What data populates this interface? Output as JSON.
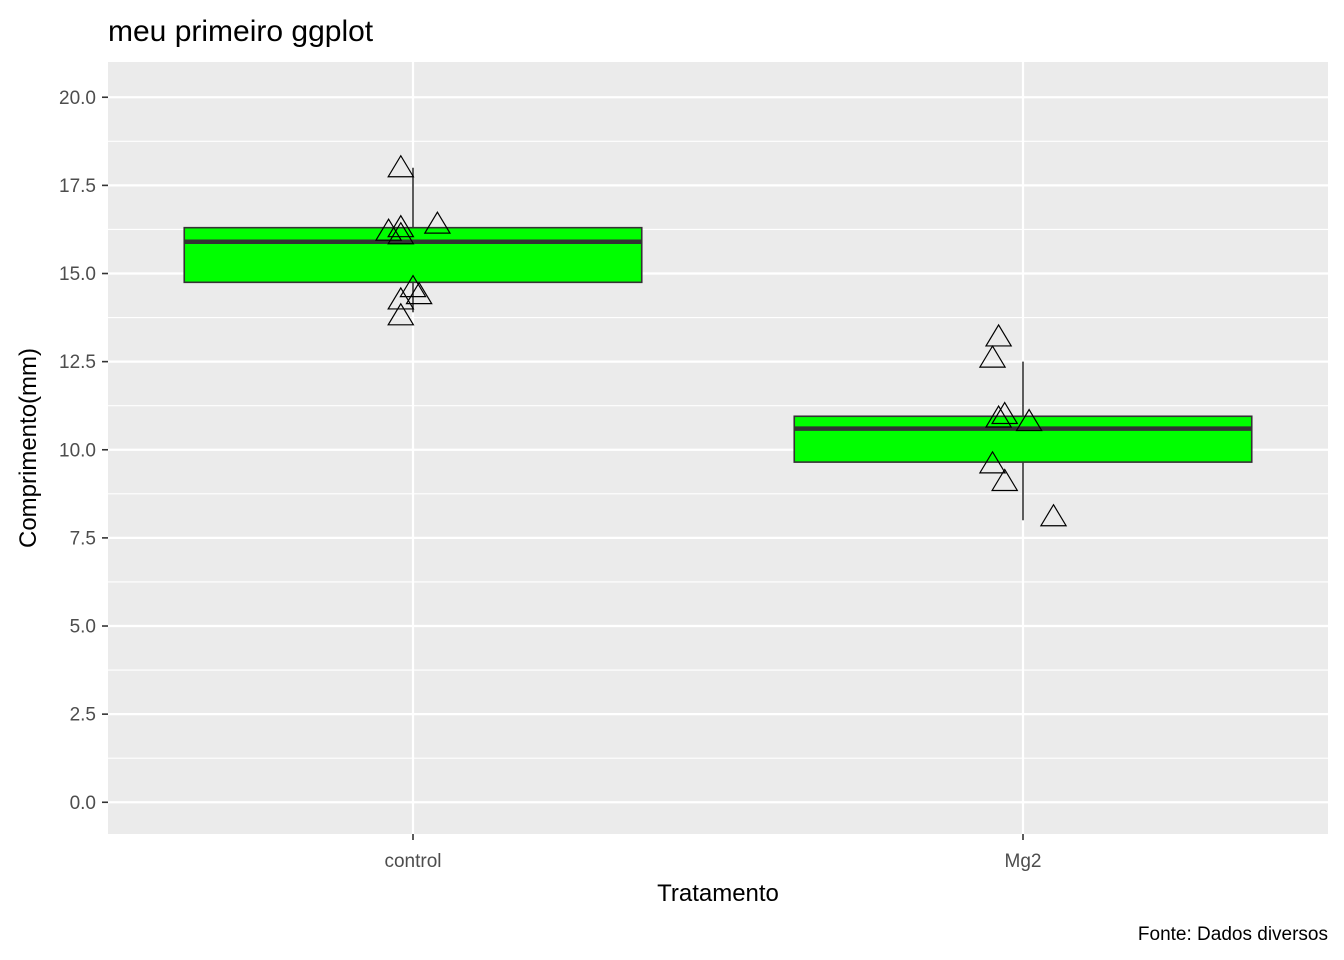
{
  "chart_data": {
    "type": "box",
    "title": "meu primeiro ggplot",
    "xlabel": "Tratamento",
    "ylabel": "Comprimento(mm)",
    "caption": "Fonte: Dados diversos",
    "ylim": [
      -0.9,
      21.0
    ],
    "yticks": [
      0.0,
      2.5,
      5.0,
      7.5,
      10.0,
      12.5,
      15.0,
      17.5,
      20.0
    ],
    "ytick_labels": [
      "0.0",
      "2.5",
      "5.0",
      "7.5",
      "10.0",
      "12.5",
      "15.0",
      "17.5",
      "20.0"
    ],
    "categories": [
      "control",
      "Mg2"
    ],
    "grid": true,
    "colors": {
      "panel_bg": "#ebebeb",
      "grid": "#ffffff",
      "box_fill": "#00ff00",
      "box_line": "#333333",
      "median_line": "#333333",
      "point_stroke": "#000000"
    },
    "boxes": [
      {
        "category": "control",
        "min": 13.9,
        "q1": 14.75,
        "median": 15.9,
        "q3": 16.3,
        "max": 18.0
      },
      {
        "category": "Mg2",
        "min": 8.0,
        "q1": 9.65,
        "median": 10.6,
        "q3": 10.95,
        "max": 12.5
      }
    ],
    "points": [
      {
        "category": "control",
        "jitter": -0.02,
        "y": 18.0
      },
      {
        "category": "control",
        "jitter": -0.02,
        "y": 16.3
      },
      {
        "category": "control",
        "jitter": -0.04,
        "y": 16.2
      },
      {
        "category": "control",
        "jitter": 0.04,
        "y": 16.4
      },
      {
        "category": "control",
        "jitter": -0.02,
        "y": 16.1
      },
      {
        "category": "control",
        "jitter": 0.0,
        "y": 14.6
      },
      {
        "category": "control",
        "jitter": 0.01,
        "y": 14.4
      },
      {
        "category": "control",
        "jitter": -0.02,
        "y": 14.25
      },
      {
        "category": "control",
        "jitter": -0.02,
        "y": 13.8
      },
      {
        "category": "Mg2",
        "jitter": -0.04,
        "y": 13.2
      },
      {
        "category": "Mg2",
        "jitter": -0.05,
        "y": 12.6
      },
      {
        "category": "Mg2",
        "jitter": -0.03,
        "y": 11.0
      },
      {
        "category": "Mg2",
        "jitter": -0.04,
        "y": 10.9
      },
      {
        "category": "Mg2",
        "jitter": 0.01,
        "y": 10.8
      },
      {
        "category": "Mg2",
        "jitter": -0.05,
        "y": 9.6
      },
      {
        "category": "Mg2",
        "jitter": -0.03,
        "y": 9.1
      },
      {
        "category": "Mg2",
        "jitter": 0.05,
        "y": 8.1
      }
    ]
  }
}
